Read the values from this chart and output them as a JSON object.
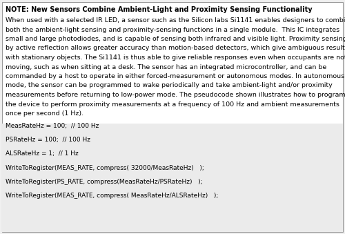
{
  "bg_color": "#f0f0f0",
  "text_area_bg": "#ffffff",
  "code_area_bg": "#e8e8e8",
  "border_color": "#999999",
  "title": "NOTE: New Sensors Combine Ambient-Light and Proximity Sensing Functionality",
  "body_lines": [
    "When used with a selected IR LED, a sensor such as the Silicon labs Si1141 enables designers to combine",
    "both the ambient-light sensing and proximity-sensing functions in a single module.  This IC integrates",
    "small and large photodiodes, and is capable of sensing both infrared and visible light. Proximity sensing",
    "by active reflection allows greater accuracy than motion-based detectors, which give ambiguous results",
    "with stationary objects. The Si1141 is thus able to give reliable responses even when occupants are not",
    "moving, such as when sitting at a desk. The sensor has an integrated microcontroller, and can be",
    "commanded by a host to operate in either forced-measurement or autonomous modes. In autonomous",
    "mode, the sensor can be programmed to wake periodically and take ambient-light and/or proximity",
    "measurements before returning to low-power mode. The pseudocode shown illustrates how to program",
    "the device to perform proximity measurements at a frequency of 100 Hz and ambient measurements",
    "once per second (1 Hz)."
  ],
  "code_lines": [
    "MeasRateHz = 100;  // 100 Hz",
    "",
    "PSRateHz = 100;  // 100 Hz",
    "",
    "ALSRateHz = 1;  // 1 Hz",
    "",
    "WriteToRegister(MEAS_RATE, compress( 32000/MeasRateHz)   );",
    "",
    "WriteToRegister(PS_RATE, compress(MeasRateHz/PSRateHz)   );",
    "",
    "WriteToRegister(MEAS_RATE, compress( MeasRateHz/ALSRateHz)   );"
  ],
  "title_fontsize": 7.0,
  "body_fontsize": 6.8,
  "code_fontsize": 6.5,
  "text_color": "#000000",
  "figwidth": 5.0,
  "figheight": 3.39,
  "dpi": 100
}
